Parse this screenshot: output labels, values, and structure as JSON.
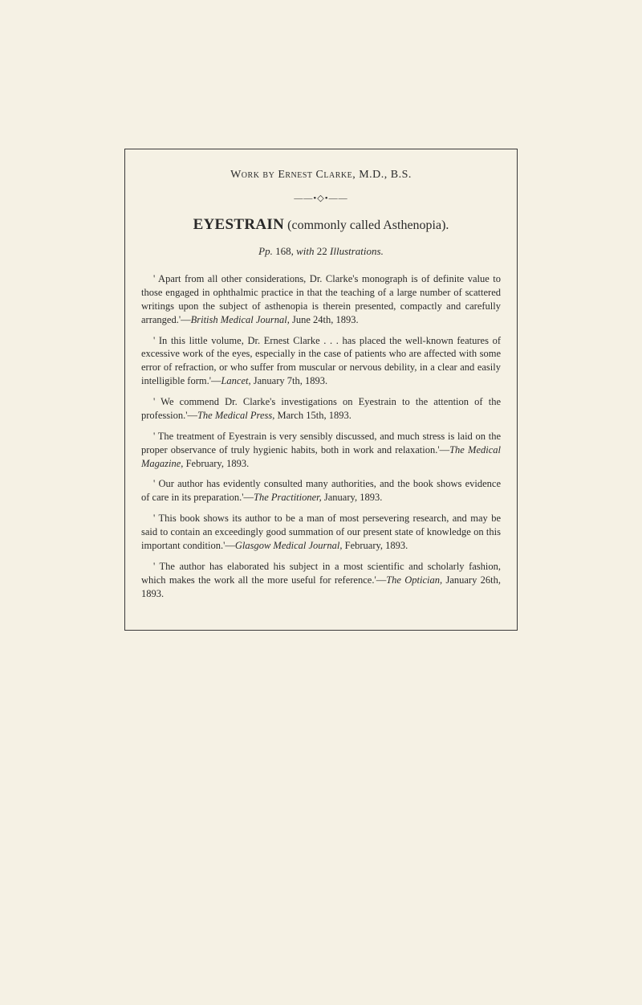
{
  "top_line": "Work by Ernest Clarke, M.D., B.S.",
  "ornament": "——•◇•——",
  "title_bold": "EYESTRAIN",
  "title_rest": " (commonly called Asthenopia).",
  "pp_line_italic_1": "Pp.",
  "pp_line_roman_1": " 168, ",
  "pp_line_italic_2": "with",
  "pp_line_roman_2": " 22 ",
  "pp_line_italic_3": "Illustrations.",
  "reviews": [
    {
      "text": "' Apart from all other considerations, Dr. Clarke's monograph is of definite value to those engaged in ophthalmic practice in that the teaching of a large number of scattered writings upon the subject of asthenopia is therein presented, compactly and carefully arranged.'—",
      "source": "British Medical Journal,",
      "tail": " June 24th, 1893."
    },
    {
      "text": "' In this little volume, Dr. Ernest Clarke . . . has placed the well-known features of excessive work of the eyes, especially in the case of patients who are affected with some error of refraction, or who suffer from muscular or nervous debility, in a clear and easily intelligible form.'—",
      "source": "Lancet,",
      "tail": " January 7th, 1893."
    },
    {
      "text": "' We commend Dr. Clarke's investigations on Eyestrain to the attention of the profession.'—",
      "source": "The Medical Press,",
      "tail": " March 15th, 1893."
    },
    {
      "text": "' The treatment of Eyestrain is very sensibly discussed, and much stress is laid on the proper observance of truly hygienic habits, both in work and relaxation.'—",
      "source": "The Medical Magazine,",
      "tail": " February, 1893."
    },
    {
      "text": "' Our author has evidently consulted many authorities, and the book shows evidence of care in its preparation.'—",
      "source": "The Practitioner,",
      "tail": " January, 1893."
    },
    {
      "text": "' This book shows its author to be a man of most persevering research, and may be said to contain an exceedingly good summation of our present state of knowledge on this important condition.'—",
      "source": "Glasgow Medical Journal,",
      "tail": " February, 1893."
    },
    {
      "text": "' The author has elaborated his subject in a most scientific and scholarly fashion, which makes the work all the more useful for reference.'—",
      "source": "The Optician,",
      "tail": " January 26th, 1893."
    }
  ]
}
